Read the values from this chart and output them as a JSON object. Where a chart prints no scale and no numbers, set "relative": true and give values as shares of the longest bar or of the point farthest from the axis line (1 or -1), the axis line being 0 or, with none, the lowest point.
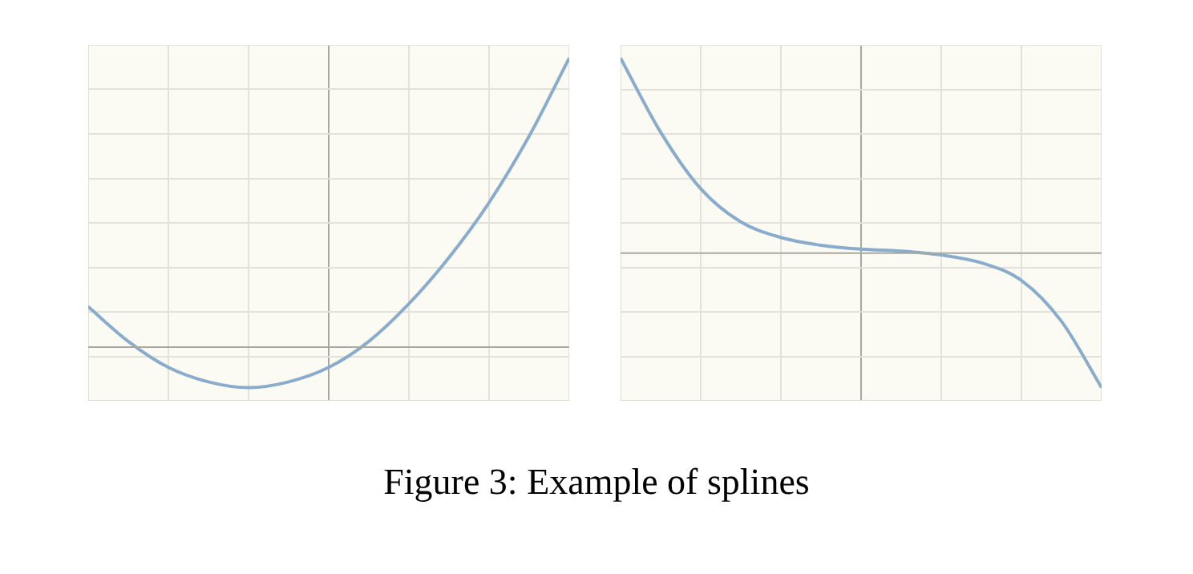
{
  "chart_data": [
    {
      "type": "line",
      "relative": true,
      "grid": true,
      "tick_labels": false,
      "marker": "none",
      "categories": [
        null,
        null,
        null,
        null,
        null,
        null,
        null,
        null,
        null,
        null,
        null,
        null,
        null
      ],
      "series": [
        {
          "color": "#8aaccc",
          "values": [
            0.14,
            0.02,
            -0.07,
            -0.12,
            -0.14,
            -0.12,
            -0.07,
            0.02,
            0.15,
            0.31,
            0.5,
            0.73,
            1
          ]
        }
      ]
    },
    {
      "type": "line",
      "relative": true,
      "grid": true,
      "tick_labels": false,
      "marker": "none",
      "categories": [
        null,
        null,
        null,
        null,
        null,
        null,
        null,
        null,
        null,
        null,
        null,
        null,
        null
      ],
      "series": [
        {
          "color": "#8aaccc",
          "values": [
            1,
            0.62,
            0.33,
            0.16,
            0.08,
            0.04,
            0.02,
            0.01,
            -0.01,
            -0.05,
            -0.14,
            -0.35,
            -0.69
          ]
        }
      ]
    },
    {
      "type": "other",
      "annotations": [
        "Figure 3: Example of splines"
      ]
    }
  ]
}
